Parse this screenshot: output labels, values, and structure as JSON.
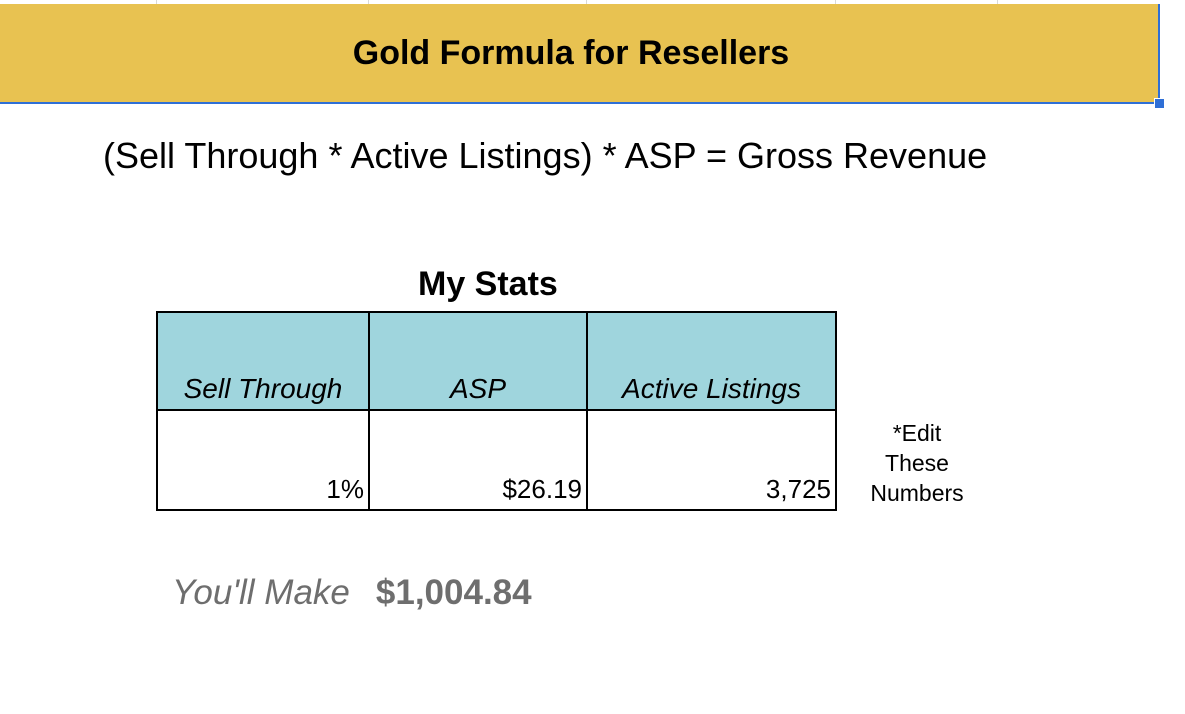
{
  "header": {
    "title": "Gold Formula for Resellers"
  },
  "formula": "(Sell Through * Active Listings) * ASP = Gross Revenue",
  "stats": {
    "title": "My Stats",
    "columns": [
      "Sell Through",
      "ASP",
      "Active Listings"
    ],
    "values": [
      "1%",
      "$26.19",
      "3,725"
    ]
  },
  "note": {
    "line1": "*Edit",
    "line2": "These",
    "line3": "Numbers"
  },
  "result": {
    "label": "You'll Make",
    "value": "$1,004.84"
  },
  "colors": {
    "header_fill": "#e8c251",
    "table_header_fill": "#9fd5dd",
    "selection": "#2f6fd6",
    "result_text": "#6e6e6e"
  }
}
